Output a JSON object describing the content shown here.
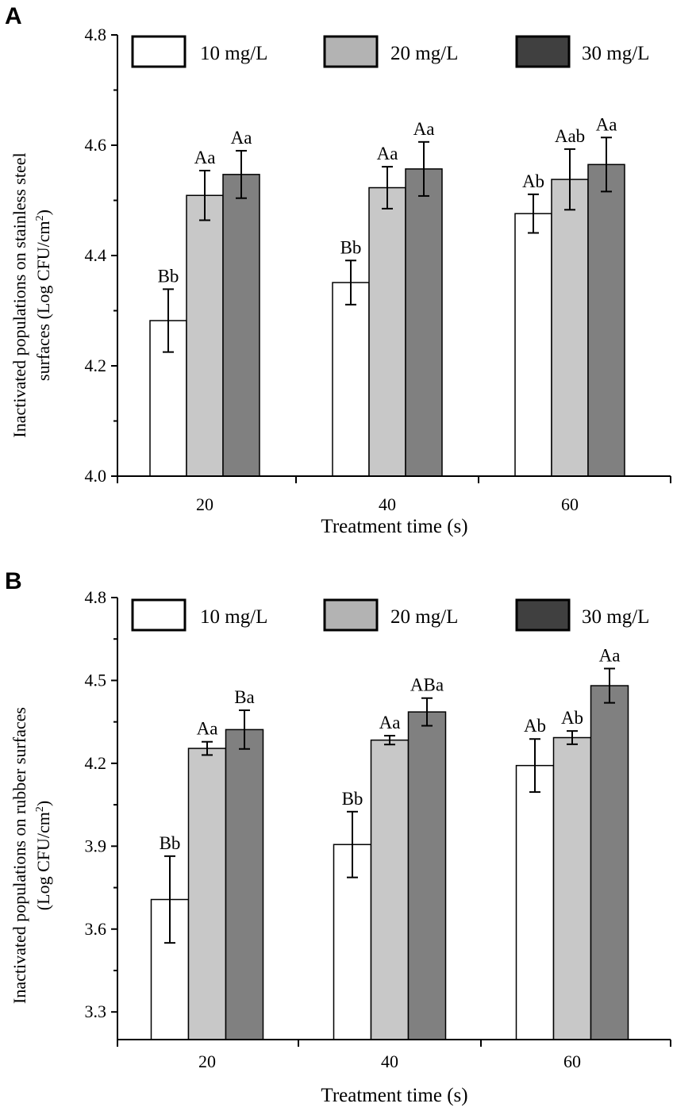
{
  "chart_data": [
    {
      "type": "bar",
      "panel": "A",
      "categories": [
        "20",
        "40",
        "60"
      ],
      "series": [
        {
          "name": "10 mg/L",
          "color": "#ffffff",
          "values": [
            4.282,
            4.351,
            4.476
          ],
          "errors": [
            0.057,
            0.04,
            0.035
          ],
          "labels": [
            "Bb",
            "Bb",
            "Ab"
          ]
        },
        {
          "name": "20 mg/L",
          "color": "#c8c8c8",
          "values": [
            4.509,
            4.523,
            4.538
          ],
          "errors": [
            0.045,
            0.038,
            0.055
          ],
          "labels": [
            "Aa",
            "Aa",
            "Aab"
          ]
        },
        {
          "name": "30 mg/L",
          "color": "#808080",
          "values": [
            4.547,
            4.557,
            4.565
          ],
          "errors": [
            0.043,
            0.049,
            0.049
          ],
          "labels": [
            "Aa",
            "Aa",
            "Aa"
          ]
        }
      ],
      "legend_swatch_colors": [
        "#ffffff",
        "#b3b3b3",
        "#404040"
      ],
      "xlabel": "Treatment time (s)",
      "ylabel_lines": [
        "Inactivated populations on stainless steel",
        "surfaces (Log CFU/cm",
        "2",
        ")"
      ],
      "ylim": [
        4.0,
        4.8
      ],
      "yticks": [
        "4.0",
        "4.2",
        "4.4",
        "4.6",
        "4.8"
      ],
      "ytick_values": [
        4.0,
        4.2,
        4.4,
        4.6,
        4.8
      ]
    },
    {
      "type": "bar",
      "panel": "B",
      "categories": [
        "20",
        "40",
        "60"
      ],
      "series": [
        {
          "name": "10 mg/L",
          "color": "#ffffff",
          "values": [
            3.707,
            3.906,
            4.192
          ],
          "errors": [
            0.157,
            0.119,
            0.096
          ],
          "labels": [
            "Bb",
            "Bb",
            "Ab"
          ]
        },
        {
          "name": "20 mg/L",
          "color": "#c8c8c8",
          "values": [
            4.254,
            4.284,
            4.293
          ],
          "errors": [
            0.024,
            0.016,
            0.024
          ],
          "labels": [
            "Aa",
            "Aa",
            "Ab"
          ]
        },
        {
          "name": "30 mg/L",
          "color": "#808080",
          "values": [
            4.322,
            4.386,
            4.481
          ],
          "errors": [
            0.07,
            0.05,
            0.062
          ],
          "labels": [
            "Ba",
            "ABa",
            "Aa"
          ]
        }
      ],
      "legend_swatch_colors": [
        "#ffffff",
        "#b3b3b3",
        "#404040"
      ],
      "xlabel": "Treatment time (s)",
      "ylabel_lines": [
        "Inactivated populations on rubber surfaces",
        "(Log CFU/cm",
        "2",
        ")"
      ],
      "ylim": [
        3.2,
        4.8
      ],
      "yticks": [
        "3.3",
        "3.6",
        "3.9",
        "4.2",
        "4.5",
        "4.8"
      ],
      "ytick_values": [
        3.3,
        3.6,
        3.9,
        4.2,
        4.5,
        4.8
      ]
    }
  ]
}
